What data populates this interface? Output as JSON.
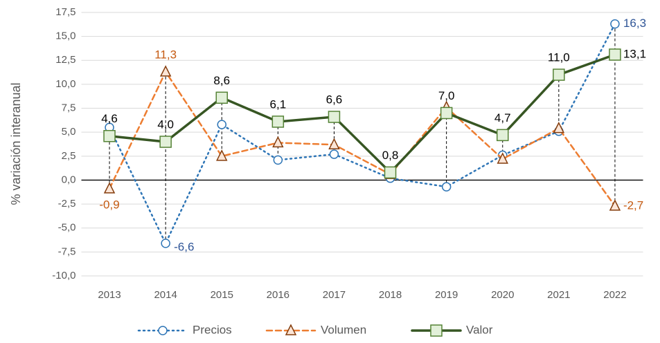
{
  "chart_data": {
    "type": "line",
    "y_label": "% variación interanual",
    "categories": [
      "2013",
      "2014",
      "2015",
      "2016",
      "2017",
      "2018",
      "2019",
      "2020",
      "2021",
      "2022"
    ],
    "series": [
      {
        "name": "Precios",
        "color": "#2e75b6",
        "label_color": "#2f5597",
        "marker": "circle",
        "dash": "dotted",
        "values": [
          5.5,
          -6.6,
          5.8,
          2.1,
          2.7,
          0.2,
          -0.7,
          2.6,
          5.1,
          16.3
        ],
        "value_labels": [
          null,
          "-6,6",
          null,
          null,
          null,
          null,
          null,
          null,
          null,
          "16,3"
        ]
      },
      {
        "name": "Volumen",
        "color": "#ed7d31",
        "label_color": "#c55a11",
        "marker": "triangle",
        "dash": "dashed",
        "values": [
          -0.9,
          11.3,
          2.5,
          3.9,
          3.7,
          0.6,
          7.6,
          2.2,
          5.4,
          -2.7
        ],
        "value_labels": [
          "-0,9",
          "11,3",
          null,
          null,
          null,
          null,
          null,
          null,
          null,
          "-2,7"
        ]
      },
      {
        "name": "Valor",
        "color": "#375623",
        "label_color": "#000000",
        "marker": "square",
        "dash": "solid",
        "values": [
          4.6,
          4.0,
          8.6,
          6.1,
          6.6,
          0.8,
          7.0,
          4.7,
          11.0,
          13.1
        ],
        "value_labels": [
          "4,6",
          "4,0",
          "8,6",
          "6,1",
          "6,6",
          "0,8",
          "7,0",
          "4,7",
          "11,0",
          "13,1"
        ]
      }
    ],
    "ylim": [
      -10,
      17.5
    ],
    "yticks": [
      {
        "value": -10,
        "label": "-10,0"
      },
      {
        "value": -7.5,
        "label": "-7,5"
      },
      {
        "value": -5,
        "label": "-5,0"
      },
      {
        "value": -2.5,
        "label": "-2,5"
      },
      {
        "value": 0,
        "label": "0,0"
      },
      {
        "value": 2.5,
        "label": "2,5"
      },
      {
        "value": 5,
        "label": "5,0"
      },
      {
        "value": 7.5,
        "label": "7,5"
      },
      {
        "value": 10,
        "label": "10,0"
      },
      {
        "value": 12.5,
        "label": "12,5"
      },
      {
        "value": 15,
        "label": "15,0"
      },
      {
        "value": 17.5,
        "label": "17,5"
      }
    ],
    "grid": true,
    "high_low_lines": true,
    "legend": "bottom"
  }
}
